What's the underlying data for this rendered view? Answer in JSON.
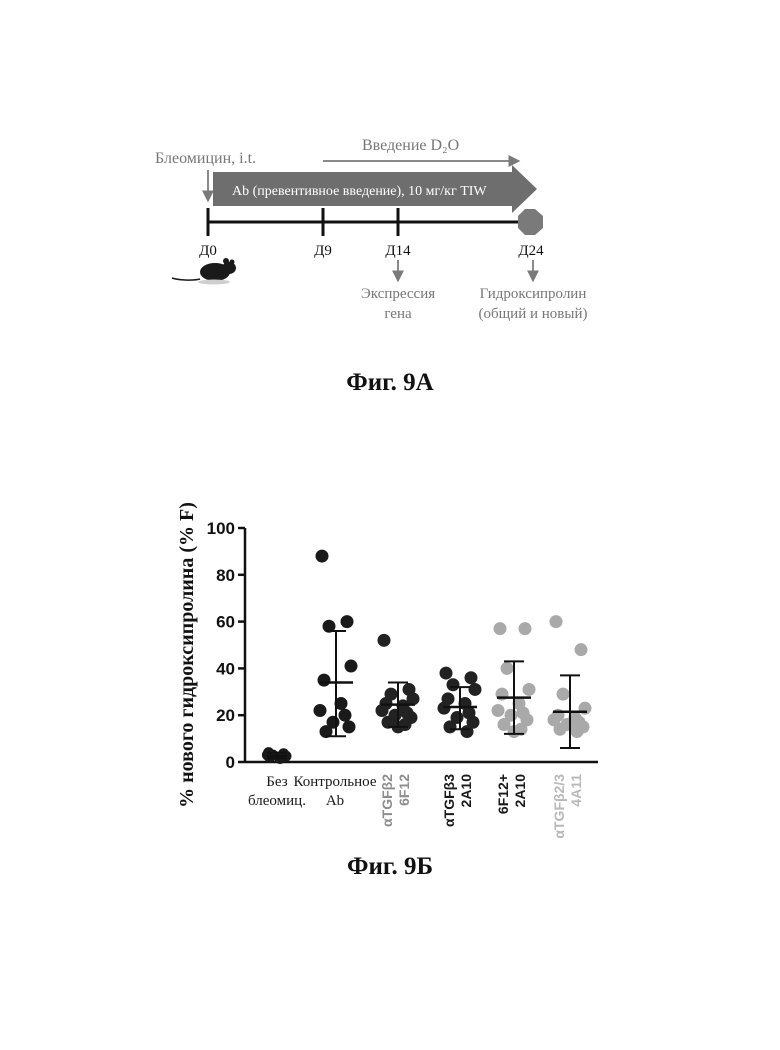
{
  "figure_a": {
    "caption": "Фиг. 9А",
    "bleomycin_label": "Блеомицин, i.t.",
    "d2o_label": "Введение D₂O",
    "ab_label": "Ab (превентивное введение), 10 мг/кг TIW",
    "timepoints": [
      "Д0",
      "Д9",
      "Д14",
      "Д24"
    ],
    "readout_gene_line1": "Экспрессия",
    "readout_gene_line2": "гена",
    "readout_hyp_line1": "Гидроксипролин",
    "readout_hyp_line2": "(общий и новый)",
    "colors": {
      "arrow_dark": "#6e6e6e",
      "arrow_light": "#8a8a8a",
      "endpoint": "#7a7a7a",
      "mouse": "#1a1a1a"
    }
  },
  "figure_b": {
    "caption": "Фиг. 9Б"
  },
  "chart_data": {
    "type": "scatter",
    "ylabel": "% нового гидроксипролина (% F)",
    "ylim": [
      0,
      100
    ],
    "yticks": [
      0,
      20,
      40,
      60,
      80,
      100
    ],
    "groups": [
      {
        "label_lines": [
          "Без",
          "блеомиц."
        ],
        "rotated": false,
        "color": "#1a1a1a",
        "label_color": "#1a1a1a",
        "mean": 2.5,
        "sd_low": 1.5,
        "sd_high": 4,
        "points": [
          4,
          3.5,
          3,
          2.5,
          2,
          1.5,
          3,
          2.2
        ]
      },
      {
        "label_lines": [
          "Контрольное",
          "Ab"
        ],
        "rotated": false,
        "color": "#1a1a1a",
        "label_color": "#1a1a1a",
        "mean": 34,
        "sd_low": 11,
        "sd_high": 56,
        "points": [
          88,
          60,
          58,
          41,
          35,
          25,
          22,
          20,
          17,
          15,
          13
        ]
      },
      {
        "label_lines": [
          "αTGFβ2",
          "6F12"
        ],
        "rotated": true,
        "color": "#222222",
        "label_color": "#8c8c8c",
        "mean": 24.5,
        "sd_low": 15,
        "sd_high": 34,
        "points": [
          52,
          31,
          29,
          27,
          25,
          24,
          22,
          21,
          20,
          19,
          17,
          16,
          15
        ]
      },
      {
        "label_lines": [
          "αTGFβ3",
          "2A10"
        ],
        "rotated": true,
        "color": "#222222",
        "label_color": "#1a1a1a",
        "mean": 23.5,
        "sd_low": 14,
        "sd_high": 32,
        "points": [
          38,
          36,
          33,
          31,
          27,
          25,
          23,
          21,
          19,
          17,
          15,
          13
        ]
      },
      {
        "label_lines": [
          "6F12+",
          "2A10"
        ],
        "rotated": true,
        "color": "#a9a9a9",
        "label_color": "#1a1a1a",
        "mean": 27.5,
        "sd_low": 12,
        "sd_high": 43,
        "points": [
          57,
          57,
          40,
          31,
          29,
          25,
          22,
          21,
          20,
          18,
          16,
          14,
          13
        ]
      },
      {
        "label_lines": [
          "αTGFβ2/3",
          "4A11"
        ],
        "rotated": true,
        "color": "#a9a9a9",
        "label_color": "#b8b8b8",
        "mean": 21.5,
        "sd_low": 6,
        "sd_high": 37,
        "points": [
          60,
          48,
          29,
          23,
          20,
          19,
          18,
          17,
          16,
          15,
          14,
          13
        ]
      }
    ]
  }
}
